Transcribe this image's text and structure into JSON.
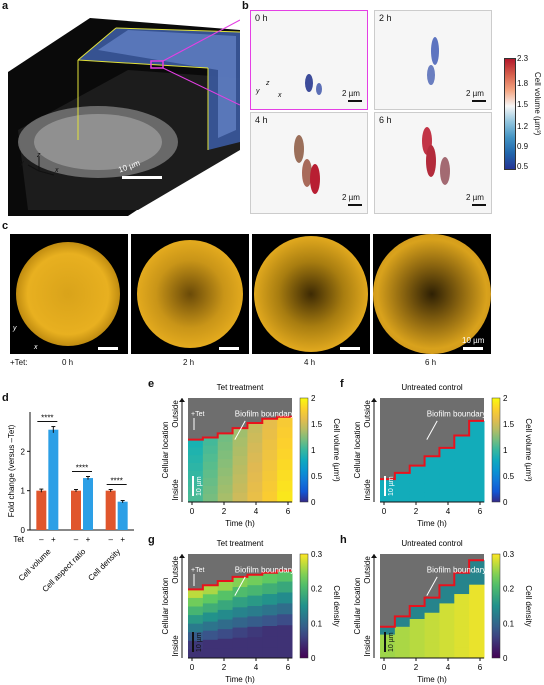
{
  "panel_labels": {
    "a": "a",
    "b": "b",
    "c": "c",
    "d": "d",
    "e": "e",
    "f": "f",
    "g": "g",
    "h": "h"
  },
  "panel_a": {
    "axis_y": "y",
    "axis_z": "z",
    "axis_x": "x",
    "scalebar": "10 µm"
  },
  "panel_b": {
    "times": [
      "0 h",
      "2 h",
      "4 h",
      "6 h"
    ],
    "scalebar": "2 µm",
    "axis_y": "y",
    "axis_z": "z",
    "axis_x": "x",
    "colorbar_title": "Cell volume (µm³)",
    "colorbar_ticks": [
      "2.3",
      "1.8",
      "1.5",
      "1.2",
      "0.9",
      "0.5"
    ]
  },
  "panel_c": {
    "times": [
      "0 h",
      "2 h",
      "4 h",
      "6 h"
    ],
    "tet_label": "+Tet:",
    "scalebar": "10 µm",
    "axis_y": "y",
    "axis_x": "x"
  },
  "chart_data": [
    {
      "panel": "d",
      "type": "bar",
      "ylabel": "Fold change (versus –Tet)",
      "ylim": [
        0,
        3
      ],
      "yticks": [
        "0",
        "1",
        "2"
      ],
      "categories": [
        "Cell volume",
        "Cell aspect ratio",
        "Cell density"
      ],
      "tet_row_label": "Tet",
      "tet_minus": "–",
      "tet_plus": "+",
      "series": [
        {
          "values": [
            1.0,
            1.0,
            1.0
          ],
          "errors": [
            0.04,
            0.03,
            0.03
          ],
          "color": "#e0562d"
        },
        {
          "values": [
            2.55,
            1.32,
            0.72
          ],
          "errors": [
            0.08,
            0.04,
            0.03
          ],
          "color": "#2c9fe6"
        }
      ],
      "significance": [
        "****",
        "****",
        "****"
      ]
    },
    {
      "panel": "e",
      "type": "heatmap",
      "title": "Tet treatment",
      "xlabel": "Time (h)",
      "ylabel_top": "Outside",
      "ylabel_mid": "Cellular location",
      "ylabel_bottom": "Inside",
      "xticks": [
        "0",
        "2",
        "4",
        "6"
      ],
      "annotation": "Biofilm boundary",
      "tet_arrow": "+Tet",
      "scalebar": "10 µm",
      "colorbar_title": "Cell volume (µm³)",
      "colorbar_ticks": [
        "2",
        "1.5",
        "1",
        "0.5",
        "0"
      ]
    },
    {
      "panel": "f",
      "type": "heatmap",
      "title": "Untreated control",
      "xlabel": "Time (h)",
      "ylabel_top": "Outside",
      "ylabel_mid": "Cellular location",
      "ylabel_bottom": "Inside",
      "xticks": [
        "0",
        "2",
        "4",
        "6"
      ],
      "annotation": "Biofilm boundary",
      "scalebar": "10 µm",
      "colorbar_title": "Cell volume (µm³)",
      "colorbar_ticks": [
        "2",
        "1.5",
        "1",
        "0.5",
        "0"
      ]
    },
    {
      "panel": "g",
      "type": "heatmap",
      "title": "Tet treatment",
      "xlabel": "Time (h)",
      "ylabel_top": "Outside",
      "ylabel_mid": "Cellular location",
      "ylabel_bottom": "Inside",
      "xticks": [
        "0",
        "2",
        "4",
        "6"
      ],
      "annotation": "Biofilm boundary",
      "tet_arrow": "+Tet",
      "scalebar": "10 µm",
      "colorbar_title": "Cell density",
      "colorbar_ticks": [
        "0.3",
        "0.2",
        "0.1",
        "0"
      ]
    },
    {
      "panel": "h",
      "type": "heatmap",
      "title": "Untreated control",
      "xlabel": "Time (h)",
      "ylabel_top": "Outside",
      "ylabel_mid": "Cellular location",
      "ylabel_bottom": "Inside",
      "xticks": [
        "0",
        "2",
        "4",
        "6"
      ],
      "annotation": "Biofilm boundary",
      "scalebar": "10 µm",
      "colorbar_title": "Cell density",
      "colorbar_ticks": [
        "0.3",
        "0.2",
        "0.1",
        "0"
      ]
    }
  ]
}
